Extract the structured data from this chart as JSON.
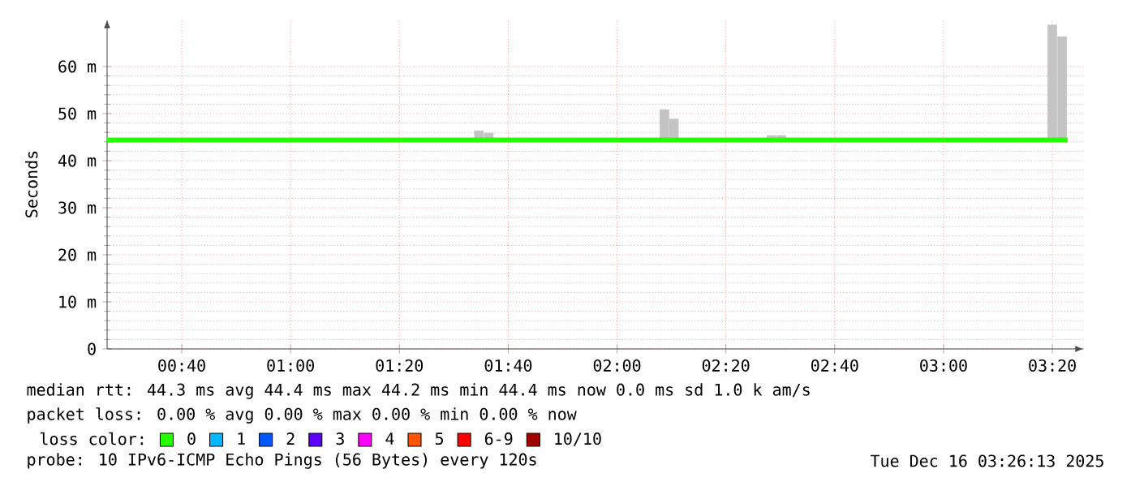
{
  "chart_data": {
    "type": "bar",
    "ylabel": "Seconds",
    "legend_title": "loss color:",
    "legend": "bottom",
    "grid": true,
    "xlim": [
      0.438,
      3.43
    ],
    "ylim": [
      0,
      70
    ],
    "xticks": [
      {
        "value": 0.6667,
        "label": "00:40"
      },
      {
        "value": 1,
        "label": "01:00"
      },
      {
        "value": 1.3333,
        "label": "01:20"
      },
      {
        "value": 1.6667,
        "label": "01:40"
      },
      {
        "value": 2,
        "label": "02:00"
      },
      {
        "value": 2.3333,
        "label": "02:20"
      },
      {
        "value": 2.6667,
        "label": "02:40"
      },
      {
        "value": 3,
        "label": "03:00"
      },
      {
        "value": 3.3333,
        "label": "03:20"
      }
    ],
    "yticks": [
      0,
      {
        "value": 10,
        "label": "10 m"
      },
      {
        "value": 20,
        "label": "20 m"
      },
      {
        "value": 30,
        "label": "30 m"
      },
      {
        "value": 40,
        "label": "40 m"
      },
      {
        "value": 50,
        "label": "50 m"
      },
      {
        "value": 60,
        "label": "60 m"
      }
    ],
    "series": [
      {
        "color": "#c4c4c4",
        "x": [
          1.577,
          1.607,
          2.145,
          2.174,
          2.473,
          2.503,
          3.333,
          3.363
        ],
        "base": [
          44.4,
          44.4,
          44.4,
          44.4,
          44.4,
          44.4,
          44.4,
          44.4
        ],
        "values": [
          2,
          1.5,
          6.5,
          4.5,
          1,
          1,
          24.5,
          22
        ]
      },
      {
        "type": "step",
        "name": "0",
        "color": "#26ff00",
        "x": [
          0.438,
          3.38
        ],
        "values": [
          44.4,
          44.4
        ]
      },
      {
        "name": "1",
        "color": "#00b8ff"
      },
      {
        "name": "2",
        "color": "#0059ff"
      },
      {
        "name": "3",
        "color": "#5e00ff"
      },
      {
        "name": "4",
        "color": "#ff00ff"
      },
      {
        "name": "5",
        "color": "#ff5500"
      },
      {
        "name": "6-9",
        "color": "#ff0000"
      },
      {
        "name": "10/10",
        "color": "#a10000"
      }
    ],
    "annotations": [
      "median rtt:  44.3 ms avg  44.4 ms max  44.2 ms min  44.4 ms now  0.0 ms sd  1.0 k am/s",
      "packet loss: 0.00 % avg  0.00 % max  0.00 % min  0.00 % now",
      "probe:       10 IPv6-ICMP Echo Pings (56 Bytes) every 120s",
      "Tue Dec 16 03:26:13 2025"
    ]
  }
}
